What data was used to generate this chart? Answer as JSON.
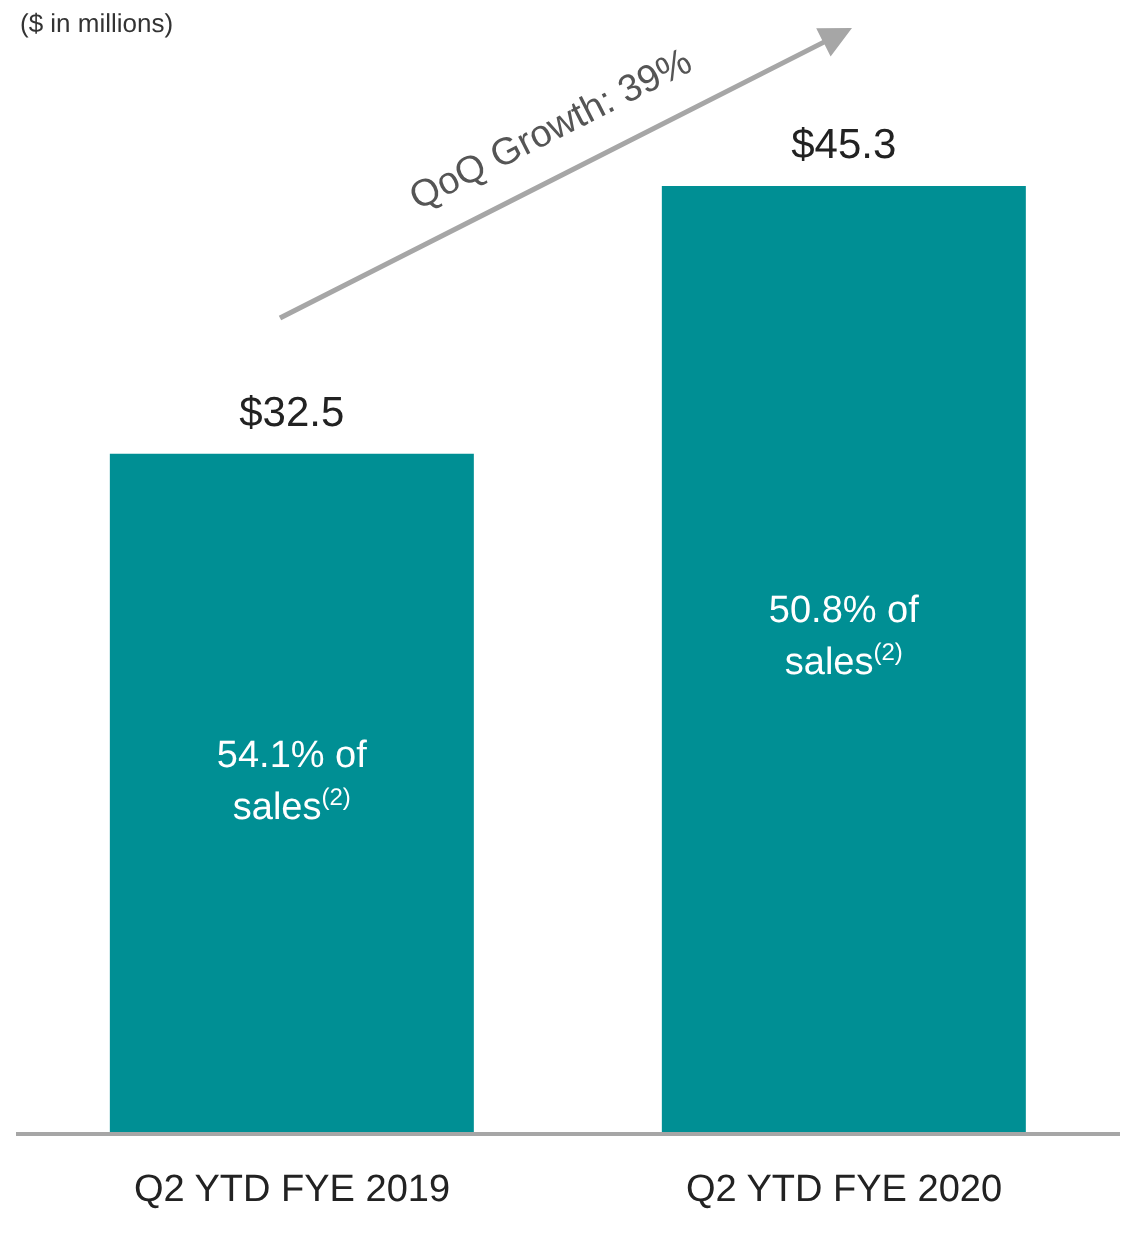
{
  "chart_data": {
    "type": "bar",
    "categories": [
      "Q2 YTD FYE 2019",
      "Q2 YTD FYE 2020"
    ],
    "values": [
      32.5,
      45.3
    ],
    "value_labels": [
      "$32.5",
      "$45.3"
    ],
    "color": "#008f94",
    "annotations": [
      "($ in millions)",
      "QoQ Growth: 39%",
      "54.1% of sales$^{(2)}$",
      "50.8% of sales$^{(2)}$"
    ]
  }
}
